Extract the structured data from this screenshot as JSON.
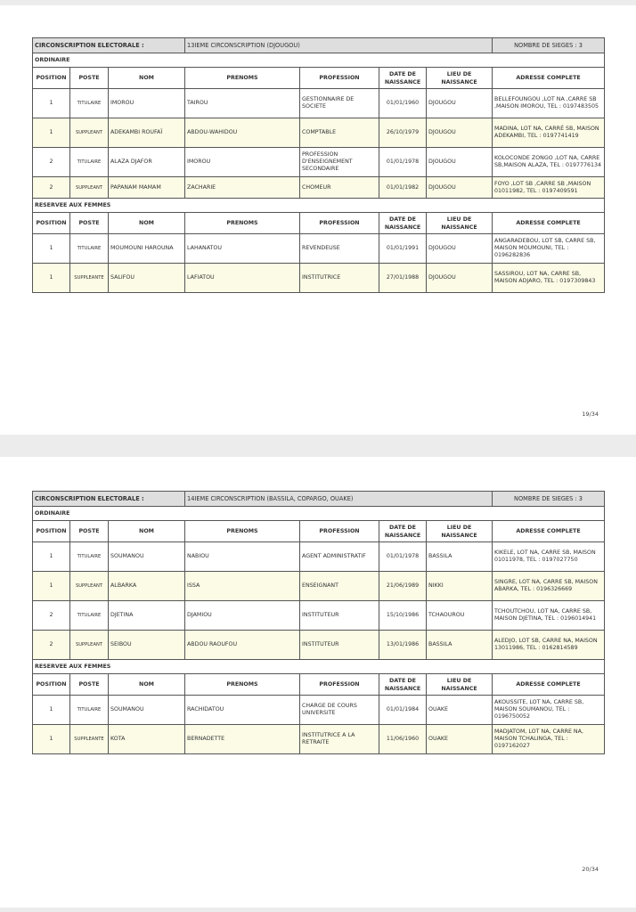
{
  "columns": [
    "POSITION",
    "POSTE",
    "NOM",
    "PRENOMS",
    "PROFESSION",
    "DATE DE NAISSANCE",
    "LIEU DE NAISSANCE",
    "ADRESSE COMPLETE"
  ],
  "pages": [
    {
      "label": "CIRCONSCRIPTION ELECTORALE :",
      "circonscription": "13IEME CIRCONSCRIPTION (DJOUGOU)",
      "sieges": "NOMBRE DE SIEGES : 3",
      "page_number": "19/34",
      "sections": [
        {
          "title": "ORDINAIRE",
          "rows": [
            [
              "1",
              "TITULAIRE",
              "IMOROU",
              "TAIROU",
              "GESTIONNAIRE DE SOCIETE",
              "01/01/1960",
              "DJOUGOU",
              "BELLEFOUNGOU ,LOT NA ,CARRE SB ,MAISON IMOROU, TEL : 0197483505"
            ],
            [
              "1",
              "SUPPLEANT",
              "ADEKAMBI ROUFAÏ",
              "ABDOU-WAHIDOU",
              "COMPTABLE",
              "26/10/1979",
              "DJOUGOU",
              "MADINA, LOT NA, CARRÉ SB, MAISON ADEKAMBI, TEL : 0197741419"
            ],
            [
              "2",
              "TITULAIRE",
              "ALAZA DJAFOR",
              "IMOROU",
              "PROFESSION D'ENSEIGNEMENT SECONDAIRE",
              "01/01/1978",
              "DJOUGOU",
              "KOLOCONDE ZONGO ,LOT NA, CARRE SB,MAISON ALAZA, TEL : 0197776134"
            ],
            [
              "2",
              "SUPPLEANT",
              "PAPANAM MAMAM",
              "ZACHARIE",
              "CHOMEUR",
              "01/01/1982",
              "DJOUGOU",
              "FOYO ,LOT SB ,CARRE SB ,MAISON 01011982, TEL : 0197409591"
            ]
          ]
        },
        {
          "title": "RESERVEE AUX FEMMES",
          "rows": [
            [
              "1",
              "TITULAIRE",
              "MOUMOUNI HAROUNA",
              "LAHANATOU",
              "REVENDEUSE",
              "01/01/1991",
              "DJOUGOU",
              "ANGARADEBOU, LOT SB, CARRE SB, MAISON MOUMOUNI, TEL : 0196282836"
            ],
            [
              "1",
              "SUPPLEANTE",
              "SALIFOU",
              "LAFIATOU",
              "INSTITUTRICE",
              "27/01/1988",
              "DJOUGOU",
              "SASSIROU, LOT NA, CARRE SB, MAISON ADJARO, TEL : 0197309843"
            ]
          ]
        }
      ]
    },
    {
      "label": "CIRCONSCRIPTION ELECTORALE :",
      "circonscription": "14IEME CIRCONSCRIPTION (BASSILA, COPARGO, OUAKE)",
      "sieges": "NOMBRE DE SIEGES : 3",
      "page_number": "20/34",
      "sections": [
        {
          "title": "ORDINAIRE",
          "rows": [
            [
              "1",
              "TITULAIRE",
              "SOUMANOU",
              "NABIOU",
              "AGENT ADMINISTRATIF",
              "01/01/1978",
              "BASSILA",
              "KIKELE, LOT NA, CARRE SB, MAISON 01011978, TEL : 0197027750"
            ],
            [
              "1",
              "SUPPLEANT",
              "ALBARKA",
              "ISSA",
              "ENSEIGNANT",
              "21/06/1989",
              "NIKKI",
              "SINGRE, LOT NA, CARRE SB, MAISON ABARKA, TEL : 0196326669"
            ],
            [
              "2",
              "TITULAIRE",
              "DJETINA",
              "DJAMIOU",
              "INSTITUTEUR",
              "15/10/1986",
              "TCHAOUROU",
              "TCHOUTCHOU, LOT NA, CARRE SB, MAISON DJETINA, TEL : 0196014941"
            ],
            [
              "2",
              "SUPPLEANT",
              "SEIBOU",
              "ABDOU RAOUFOU",
              "INSTITUTEUR",
              "13/01/1986",
              "BASSILA",
              "ALEDJO, LOT SB, CARRE NA, MAISON 13011986, TEL : 0162814589"
            ]
          ]
        },
        {
          "title": "RESERVEE AUX FEMMES",
          "rows": [
            [
              "1",
              "TITULAIRE",
              "SOUMANOU",
              "RACHIDATOU",
              "CHARGE DE COURS UNIVERSITE",
              "01/01/1984",
              "OUAKE",
              "AKOUSSITE, LOT NA, CARRE SB, MAISON SOUMANOU, TEL : 0196750052"
            ],
            [
              "1",
              "SUPPLEANTE",
              "KOTA",
              "BERNADETTE",
              "INSTITUTRICE A LA RETRAITE",
              "11/06/1960",
              "OUAKE",
              "MADJATOM, LOT NA, CARRE NA, MAISON TCHALINGA, TEL : 0197162027"
            ]
          ]
        }
      ]
    }
  ]
}
